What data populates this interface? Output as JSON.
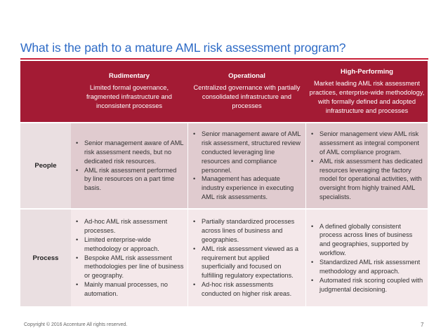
{
  "slide": {
    "title": "What is the path to a mature AML risk assessment program?",
    "stages": [
      {
        "name": "Rudimentary",
        "description": "Limited formal governance, fragmented infrastructure and inconsistent processes"
      },
      {
        "name": "Operational",
        "description": "Centralized governance with partially consolidated infrastructure and processes"
      },
      {
        "name": "High-Performing",
        "description": "Market leading AML risk assessment practices, enterprise-wide methodology, with formally defined and adopted infrastructure and processes"
      }
    ],
    "rows": [
      {
        "label": "People",
        "cells": [
          [
            "Senior management aware of AML risk assessment needs, but no dedicated risk resources.",
            "AML risk assessment performed by line resources on a part time basis."
          ],
          [
            "Senior management aware of AML risk assessment, structured review conducted leveraging line resources and compliance personnel.",
            "Management has adequate industry experience in executing AML risk assessments."
          ],
          [
            "Senior management view AML risk assessment as integral component of AML compliance program.",
            "AML risk assessment has dedicated resources leveraging the factory model for operational activities, with oversight from highly trained AML specialists."
          ]
        ]
      },
      {
        "label": "Process",
        "cells": [
          [
            "Ad-hoc AML risk assessment processes.",
            "Limited enterprise-wide methodology or approach.",
            "Bespoke AML risk assessment methodologies per line of business or geography.",
            "Mainly manual processes, no automation."
          ],
          [
            "Partially standardized processes across lines of business and geographies.",
            "AML risk assessment viewed as a requirement but applied superficially and focused on fulfilling regulatory expectations.",
            "Ad-hoc risk assessments conducted on higher risk areas."
          ],
          [
            "A defined globally consistent process across lines of business and geographies, supported by workflow.",
            "Standardized AML risk assessment methodology and approach.",
            "Automated risk scoring coupled with judgmental decisioning."
          ]
        ]
      }
    ],
    "footer": {
      "copyright": "Copyright © 2016 Accenture All rights reserved.",
      "page_number": "7"
    },
    "colors": {
      "title_blue": "#2e6bc6",
      "header_crimson": "#a31b34",
      "rule_red": "#c91f37",
      "people_row": "#e0cbcf",
      "process_row": "#f4e8ea"
    }
  }
}
